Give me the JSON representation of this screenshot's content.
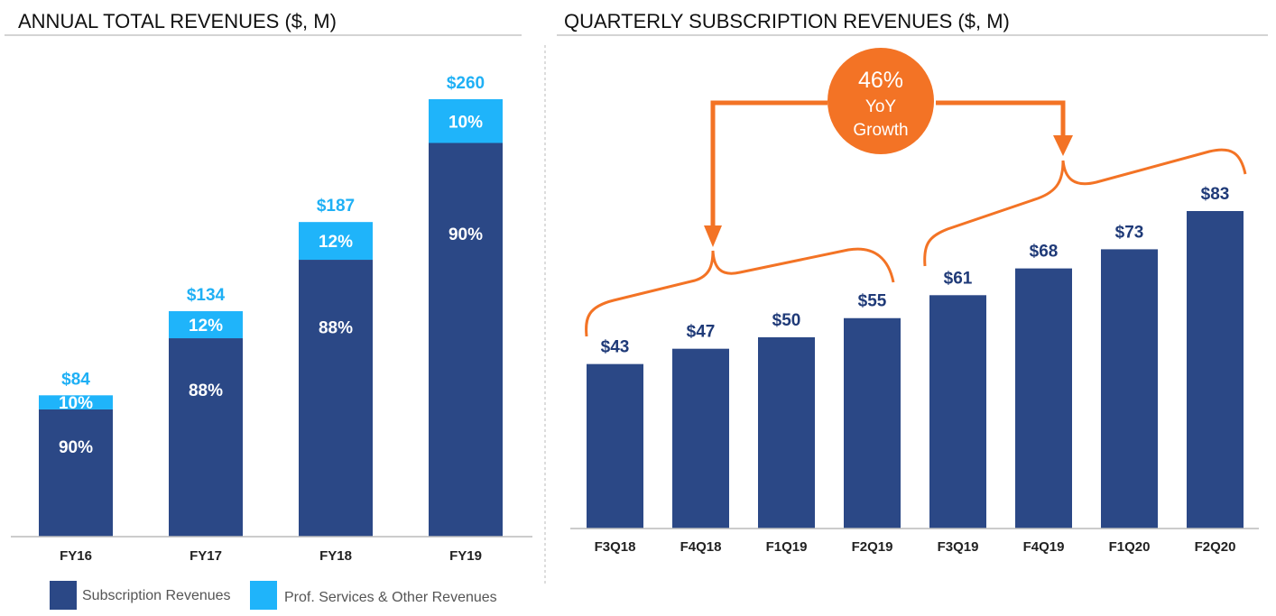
{
  "chart_data": [
    {
      "type": "bar",
      "stacked": true,
      "title": "ANNUAL TOTAL REVENUES ($, M)",
      "categories": [
        "FY16",
        "FY17",
        "FY18",
        "FY19"
      ],
      "totals": [
        84,
        134,
        187,
        260
      ],
      "total_labels": [
        "$84",
        "$134",
        "$187",
        "$260"
      ],
      "series": [
        {
          "name": "Subscription Revenues",
          "share_pct": [
            90,
            88,
            88,
            90
          ],
          "labels": [
            "90%",
            "88%",
            "88%",
            "90%"
          ],
          "color": "#2b4886"
        },
        {
          "name": "Prof. Services & Other Revenues",
          "share_pct": [
            10,
            12,
            12,
            10
          ],
          "labels": [
            "10%",
            "12%",
            "12%",
            "10%"
          ],
          "color": "#1fb4fa"
        }
      ],
      "legend": "bottom",
      "grid": false
    },
    {
      "type": "bar",
      "title": "QUARTERLY SUBSCRIPTION REVENUES ($, M)",
      "categories": [
        "F3Q18",
        "F4Q18",
        "F1Q19",
        "F2Q19",
        "F3Q19",
        "F4Q19",
        "F1Q20",
        "F2Q20"
      ],
      "values": [
        43,
        47,
        50,
        55,
        61,
        68,
        73,
        83
      ],
      "value_labels": [
        "$43",
        "$47",
        "$50",
        "$55",
        "$61",
        "$68",
        "$73",
        "$83"
      ],
      "color": "#2b4886",
      "annotation": {
        "lines": [
          "46%",
          "YoY",
          "Growth"
        ],
        "color": "#f37325"
      },
      "grid": false
    }
  ]
}
